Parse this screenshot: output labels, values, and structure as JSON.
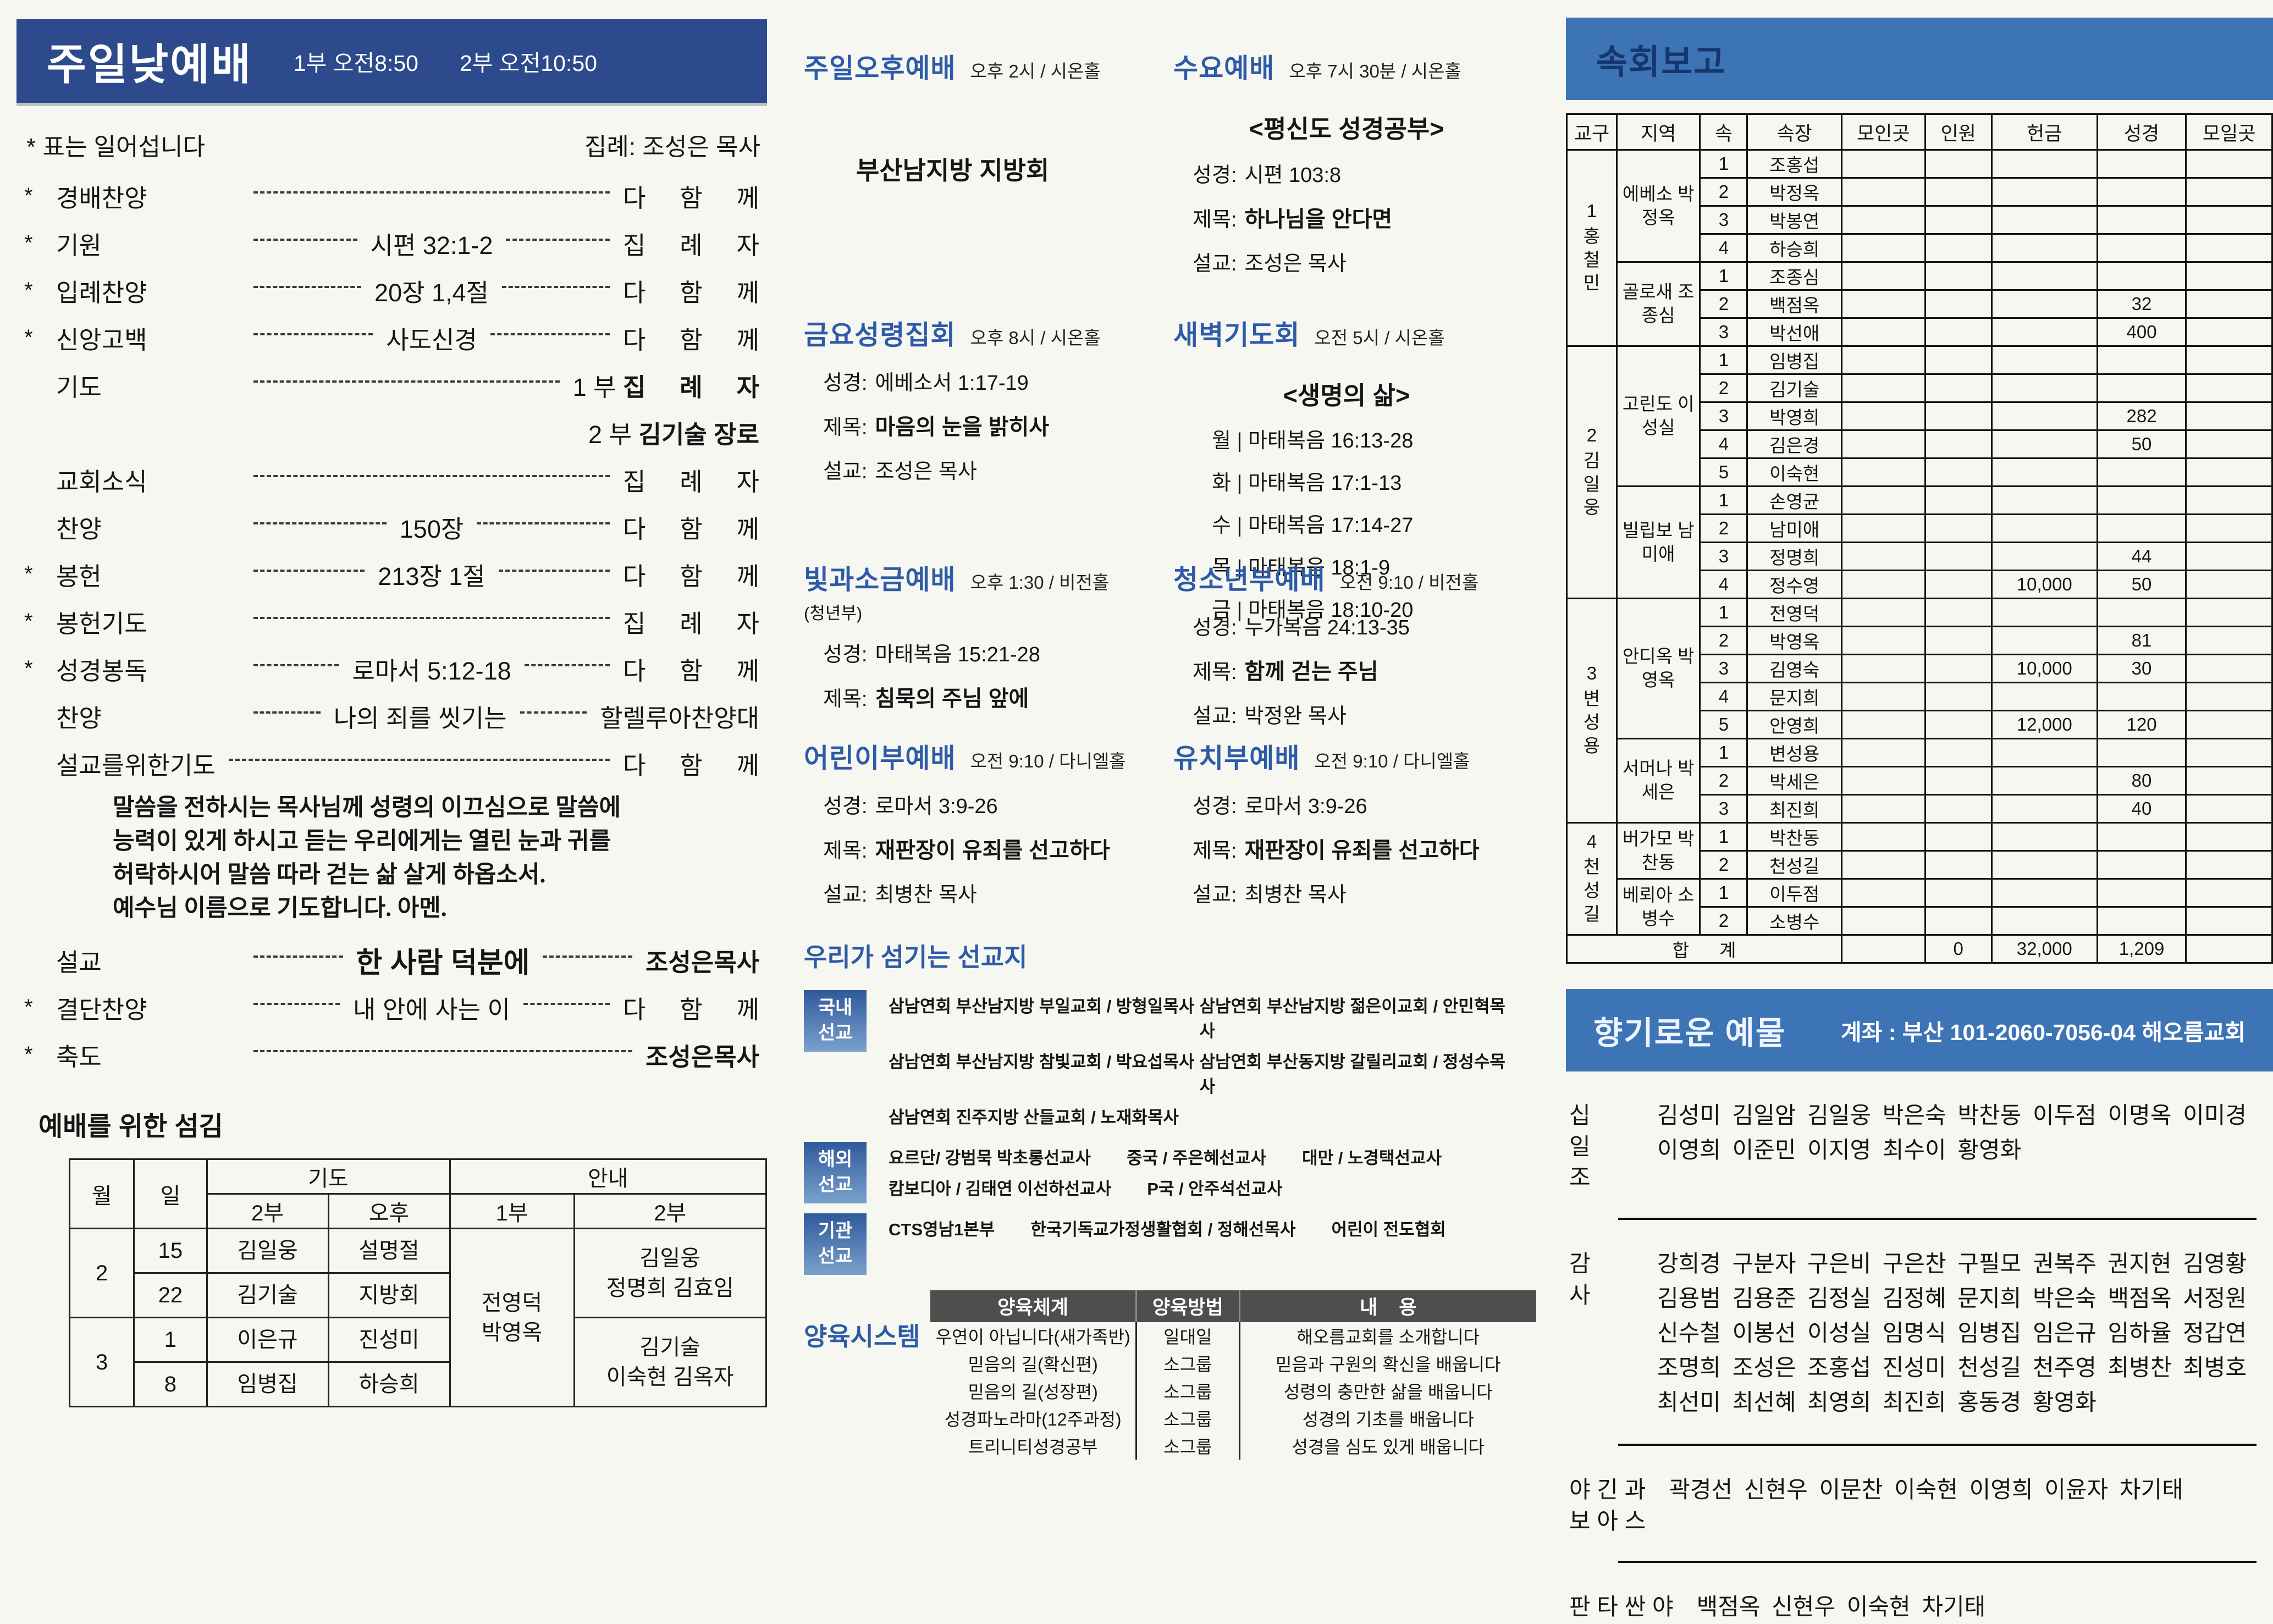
{
  "left": {
    "header": {
      "title": "주일낮예배",
      "time1": "1부 오전8:50",
      "time2": "2부 오전10:50"
    },
    "note_left": "* 표는 일어섭니다",
    "note_right": "집례: 조성은 목사",
    "prayer_after_row": 12,
    "prayer": "말씀을 전하시는 목사님께 성령의 이끄심으로 말씀에\n능력이 있게 하시고 듣는 우리에게는 열린 눈과 귀를\n허락하시어 말씀 따라 걷는 삶 살게 하옵소서.\n예수님 이름으로 기도합니다. 아멘.",
    "order": [
      {
        "star": "*",
        "label": "경배찬양",
        "center": "",
        "right": "다 함 께"
      },
      {
        "star": "*",
        "label": "기원",
        "center": "시편 32:1-2",
        "right": "집 례 자"
      },
      {
        "star": "*",
        "label": "입례찬양",
        "center": "20장 1,4절",
        "right": "다 함 께"
      },
      {
        "star": "*",
        "label": "신앙고백",
        "center": "사도신경",
        "right": "다 함 께"
      },
      {
        "star": "",
        "label": "기도",
        "center": "",
        "right_pre": "1 부 ",
        "right": "집 례 자",
        "bold": true
      },
      {
        "continuation": true,
        "right_pre": "2 부 ",
        "right": "김기술 장로",
        "bold": true
      },
      {
        "star": "",
        "label": "교회소식",
        "center": "",
        "right": "집 례 자"
      },
      {
        "star": "",
        "label": "찬양",
        "center": "150장",
        "right": "다 함 께"
      },
      {
        "star": "*",
        "label": "봉헌",
        "center": "213장 1절",
        "right": "다 함 께"
      },
      {
        "star": "*",
        "label": "봉헌기도",
        "center": "",
        "right": "집 례 자"
      },
      {
        "star": "*",
        "label": "성경봉독",
        "center": "로마서 5:12-18",
        "right": "다 함 께"
      },
      {
        "star": "",
        "label": "찬양",
        "center": "나의 죄를 씻기는",
        "right": "할렐루아찬양대"
      },
      {
        "star": "",
        "label": "설교를위한기도",
        "center": "",
        "right": "다 함 께"
      },
      {
        "star": "",
        "label": "설교",
        "center": "한 사람 덕분에",
        "center_bold": true,
        "right": "조성은목사",
        "bold": true
      },
      {
        "star": "*",
        "label": "결단찬양",
        "center": "내 안에 사는 이",
        "right": "다 함 께"
      },
      {
        "star": "*",
        "label": "축도",
        "center": "",
        "right": "조성은목사",
        "bold": true
      }
    ],
    "serving": {
      "title": "예배를 위한 섬김",
      "head": {
        "month": "월",
        "day": "일",
        "pray": "기도",
        "guide": "안내",
        "pray2": "2부",
        "pray_pm": "오후",
        "guide1": "1부",
        "guide2": "2부"
      },
      "guide1_all": "전영덕\n박영옥",
      "months": [
        {
          "label": "2",
          "guide2": "김일웅\n정명희 김효임",
          "days": [
            {
              "d": "15",
              "p2": "김일웅",
              "pm": "설명절"
            },
            {
              "d": "22",
              "p2": "김기술",
              "pm": "지방회"
            }
          ]
        },
        {
          "label": "3",
          "guide2": "김기술\n이숙현 김옥자",
          "days": [
            {
              "d": "1",
              "p2": "이은규",
              "pm": "진성미"
            },
            {
              "d": "8",
              "p2": "임병집",
              "pm": "하승희"
            }
          ]
        }
      ]
    }
  },
  "middle": {
    "sections": [
      {
        "title": "주일오후예배",
        "time": "오후 2시 / 시온홀",
        "center_text": "부산남지방 지방회"
      },
      {
        "title": "수요예배",
        "time": "오후 7시 30분 / 시온홀",
        "subtitle": "<평신도 성경공부>",
        "lines": [
          {
            "k": "성경:",
            "v": "시편 103:8"
          },
          {
            "k": "제목:",
            "v": "하나님을 안다면",
            "bold": true
          },
          {
            "k": "설교:",
            "v": "조성은 목사"
          }
        ]
      },
      {
        "title": "금요성령집회",
        "time": "오후 8시 / 시온홀",
        "lines": [
          {
            "k": "성경:",
            "v": "에베소서 1:17-19"
          },
          {
            "k": "제목:",
            "v": "마음의 눈을 밝히사",
            "bold": true
          },
          {
            "k": "설교:",
            "v": "조성은 목사"
          }
        ]
      },
      {
        "title": "새벽기도회",
        "time": "오전 5시 / 시온홀",
        "subtitle": "<생명의 삶>",
        "plain_lines": [
          "월 | 마태복음 16:13-28",
          "화 | 마태복음 17:1-13",
          "수 | 마태복음 17:14-27",
          "목 | 마태복음 18:1-9",
          "금 | 마태복음 18:10-20"
        ]
      },
      {
        "title": "빛과소금예배",
        "time": "오후 1:30 / 비전홀",
        "note": "(청년부)",
        "lines": [
          {
            "k": "성경:",
            "v": "마태복음 15:21-28"
          },
          {
            "k": "제목:",
            "v": "침묵의 주님 앞에",
            "bold": true
          }
        ]
      },
      {
        "title": "청소년부예배",
        "time": "오전 9:10 / 비전홀",
        "lines": [
          {
            "k": "성경:",
            "v": "누가복음 24:13-35"
          },
          {
            "k": "제목:",
            "v": "함께 걷는 주님",
            "bold": true
          },
          {
            "k": "설교:",
            "v": "박정완 목사"
          }
        ]
      },
      {
        "title": "어린이부예배",
        "time": "오전 9:10 / 다니엘홀",
        "lines": [
          {
            "k": "성경:",
            "v": "로마서 3:9-26"
          },
          {
            "k": "제목:",
            "v": "재판장이 유죄를 선고하다",
            "bold": true
          },
          {
            "k": "설교:",
            "v": "최병찬 목사"
          }
        ]
      },
      {
        "title": "유치부예배",
        "time": "오전 9:10 / 다니엘홀",
        "lines": [
          {
            "k": "성경:",
            "v": "로마서 3:9-26"
          },
          {
            "k": "제목:",
            "v": "재판장이 유죄를 선고하다",
            "bold": true
          },
          {
            "k": "설교:",
            "v": "최병찬 목사"
          }
        ]
      }
    ],
    "missions": {
      "title": "우리가 섬기는 선교지",
      "groups": [
        {
          "label_lines": [
            "국내",
            "선교"
          ],
          "two_col": true,
          "rows": [
            [
              "삼남연회 부산남지방 부일교회 / 방형일목사",
              "삼남연회 부산남지방 젊은이교회 / 안민혁목사"
            ],
            [
              "삼남연회 부산남지방 참빛교회 / 박요섭목사",
              "삼남연회 부산동지방 갈릴리교회 / 정성수목사"
            ],
            [
              "삼남연회 진주지방 산들교회 / 노재화목사"
            ]
          ]
        },
        {
          "label_lines": [
            "해외",
            "선교"
          ],
          "rows": [
            [
              "요르단/ 강범묵 박초롱선교사",
              "중국 / 주은혜선교사",
              "대만 / 노경택선교사"
            ],
            [
              "캄보디아 / 김태연 이선하선교사",
              "P국 / 안주석선교사"
            ]
          ]
        },
        {
          "label_lines": [
            "기관",
            "선교"
          ],
          "rows": [
            [
              "CTS영남1본부",
              "한국기독교가정생활협회 / 정해선목사",
              "어린이 전도협회"
            ]
          ]
        }
      ]
    },
    "nurture": {
      "label": "양육시스템",
      "headers": [
        "양육체계",
        "양육방법",
        "내    용"
      ],
      "rows": [
        [
          "우연이 아닙니다(새가족반)",
          "일대일",
          "해오름교회를 소개합니다"
        ],
        [
          "믿음의 길(확신편)",
          "소그룹",
          "믿음과 구원의 확신을 배웁니다"
        ],
        [
          "믿음의 길(성장편)",
          "소그룹",
          "성령의 충만한 삶을 배웁니다"
        ],
        [
          "성경파노라마(12주과정)",
          "소그룹",
          "성경의 기초를 배웁니다"
        ],
        [
          "트리니티성경공부",
          "소그룹",
          "성경을 심도 있게 배웁니다"
        ]
      ]
    }
  },
  "right": {
    "report": {
      "title": "속회보고",
      "headers": [
        "교구",
        "지역",
        "속",
        "속장",
        "모인곳",
        "인원",
        "헌금",
        "성경",
        "모일곳"
      ],
      "groups": [
        {
          "num": "1",
          "name": "홍철민",
          "regions": [
            {
              "name": "에베소 박정옥",
              "rows": [
                [
                  "1",
                  "조홍섭",
                  "",
                  "",
                  "",
                  "",
                  ""
                ],
                [
                  "2",
                  "박정옥",
                  "",
                  "",
                  "",
                  "",
                  ""
                ],
                [
                  "3",
                  "박봉연",
                  "",
                  "",
                  "",
                  "",
                  ""
                ],
                [
                  "4",
                  "하승희",
                  "",
                  "",
                  "",
                  "",
                  ""
                ]
              ]
            },
            {
              "name": "골로새 조종심",
              "rows": [
                [
                  "1",
                  "조종심",
                  "",
                  "",
                  "",
                  "",
                  ""
                ],
                [
                  "2",
                  "백점옥",
                  "",
                  "",
                  "",
                  "32",
                  ""
                ],
                [
                  "3",
                  "박선애",
                  "",
                  "",
                  "",
                  "400",
                  ""
                ]
              ]
            }
          ]
        },
        {
          "num": "2",
          "name": "김일웅",
          "regions": [
            {
              "name": "고린도 이성실",
              "rows": [
                [
                  "1",
                  "임병집",
                  "",
                  "",
                  "",
                  "",
                  ""
                ],
                [
                  "2",
                  "김기술",
                  "",
                  "",
                  "",
                  "",
                  ""
                ],
                [
                  "3",
                  "박영희",
                  "",
                  "",
                  "",
                  "282",
                  ""
                ],
                [
                  "4",
                  "김은경",
                  "",
                  "",
                  "",
                  "50",
                  ""
                ],
                [
                  "5",
                  "이숙현",
                  "",
                  "",
                  "",
                  "",
                  ""
                ]
              ]
            },
            {
              "name": "빌립보 남미애",
              "rows": [
                [
                  "1",
                  "손영균",
                  "",
                  "",
                  "",
                  "",
                  ""
                ],
                [
                  "2",
                  "남미애",
                  "",
                  "",
                  "",
                  "",
                  ""
                ],
                [
                  "3",
                  "정명희",
                  "",
                  "",
                  "",
                  "44",
                  ""
                ],
                [
                  "4",
                  "정수영",
                  "",
                  "",
                  "10,000",
                  "50",
                  ""
                ]
              ]
            }
          ]
        },
        {
          "num": "3",
          "name": "변성용",
          "regions": [
            {
              "name": "안디옥 박영옥",
              "rows": [
                [
                  "1",
                  "전영덕",
                  "",
                  "",
                  "",
                  "",
                  ""
                ],
                [
                  "2",
                  "박영옥",
                  "",
                  "",
                  "",
                  "81",
                  ""
                ],
                [
                  "3",
                  "김영숙",
                  "",
                  "",
                  "10,000",
                  "30",
                  ""
                ],
                [
                  "4",
                  "문지희",
                  "",
                  "",
                  "",
                  "",
                  ""
                ],
                [
                  "5",
                  "안영희",
                  "",
                  "",
                  "12,000",
                  "120",
                  ""
                ]
              ]
            },
            {
              "name": "서머나 박세은",
              "rows": [
                [
                  "1",
                  "변성용",
                  "",
                  "",
                  "",
                  "",
                  ""
                ],
                [
                  "2",
                  "박세은",
                  "",
                  "",
                  "",
                  "80",
                  ""
                ],
                [
                  "3",
                  "최진희",
                  "",
                  "",
                  "",
                  "40",
                  ""
                ]
              ]
            }
          ]
        },
        {
          "num": "4",
          "name": "천성길",
          "regions": [
            {
              "name": "버가모 박찬동",
              "rows": [
                [
                  "1",
                  "박찬동",
                  "",
                  "",
                  "",
                  "",
                  ""
                ],
                [
                  "2",
                  "천성길",
                  "",
                  "",
                  "",
                  "",
                  ""
                ]
              ]
            },
            {
              "name": "베뢰아 소병수",
              "rows": [
                [
                  "1",
                  "이두점",
                  "",
                  "",
                  "",
                  "",
                  ""
                ],
                [
                  "2",
                  "소병수",
                  "",
                  "",
                  "",
                  "",
                  ""
                ]
              ]
            }
          ]
        }
      ],
      "total": {
        "label": "합 계",
        "cells": [
          "",
          "0",
          "32,000",
          "1,209",
          ""
        ]
      }
    },
    "offering": {
      "title": "향기로운 예물",
      "account": "계좌 : 부산 101-2060-7056-04 해오름교회",
      "sections": [
        {
          "label_lines": [
            "십",
            "일",
            "조"
          ],
          "names": "김성미 김일암 김일웅 박은숙 박찬동 이두점 이명옥 이미경 이영희 이준민 이지영 최수이 황영화"
        },
        {
          "label_lines": [
            "감",
            "사"
          ],
          "names": "강희경 구분자 구은비 구은찬 구필모 권복주 권지현 김영황 김용범 김용준 김정실 김정혜 문지희 박은숙 백점옥 서정원 신수철 이봉선 이성실 임명식 임병집 임은규 임하율 정갑연 조명희 조성은 조홍섭 진성미 천성길 천주영 최병찬 최병호 최선미 최선혜 최영희 최진희 홍동경 황영화"
        },
        {
          "label_lines": [
            "야 긴 과",
            "보 아 스"
          ],
          "names": "곽경선 신현우 이문찬 이숙현 이영희 이윤자 차기태"
        },
        {
          "label_lines": [
            "판 타 싼 야"
          ],
          "names": "백점옥 신현우 이숙현 차기태"
        }
      ]
    }
  }
}
